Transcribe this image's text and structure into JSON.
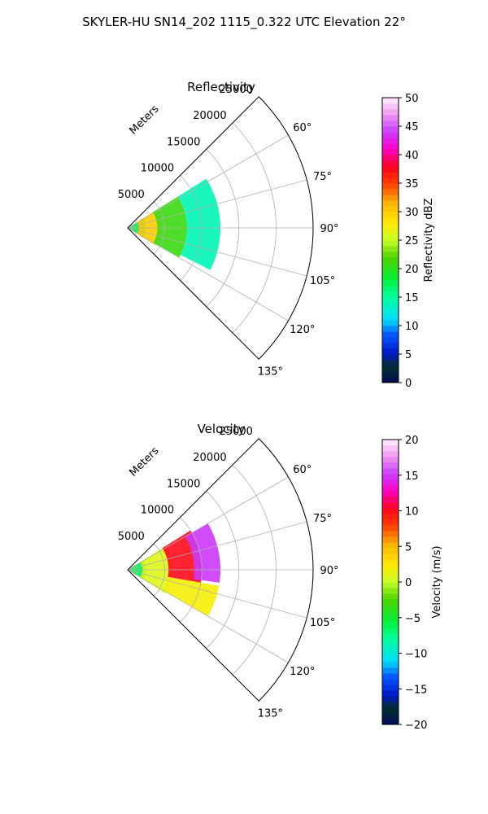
{
  "figure_title": "SKYLER-HU  SN14_202  1115_0.322 UTC Elevation 22°",
  "chart_data": [
    {
      "type": "polar-sector",
      "title": "Reflectivity",
      "range_label": "Meters",
      "range_ticks": [
        5000,
        10000,
        15000,
        20000,
        25000
      ],
      "range_tick_labels": [
        "5000",
        "10000",
        "15000",
        "20000",
        "25000"
      ],
      "rmax": 25000,
      "theta_range_deg": [
        45,
        135
      ],
      "theta_ticks_deg": [
        60,
        75,
        90,
        105,
        120,
        135
      ],
      "theta_tick_labels": [
        "60°",
        "75°",
        "90°",
        "105°",
        "120°",
        "135°"
      ],
      "grid": true,
      "colorbar": {
        "label": "Reflectivity dBZ",
        "vmin": 0,
        "vmax": 50,
        "ticks": [
          0,
          5,
          10,
          15,
          20,
          25,
          30,
          35,
          40,
          45,
          50
        ],
        "tick_labels": [
          "0",
          "5",
          "10",
          "15",
          "20",
          "25",
          "30",
          "35",
          "40",
          "45",
          "50"
        ]
      },
      "data_extent": {
        "r_max": 13500,
        "theta_min": 57,
        "theta_max": 116
      },
      "regions": [
        {
          "r": [
            0,
            2500
          ],
          "theta": [
            60,
            120
          ],
          "value": 18
        },
        {
          "r": [
            1500,
            4500
          ],
          "theta": [
            58,
            122
          ],
          "value": 30
        },
        {
          "r": [
            4000,
            8000
          ],
          "theta": [
            58,
            120
          ],
          "value": 21
        },
        {
          "r": [
            8000,
            12500
          ],
          "theta": [
            58,
            117
          ],
          "value": 14
        }
      ]
    },
    {
      "type": "polar-sector",
      "title": "Velocity",
      "range_label": "Meters",
      "range_ticks": [
        5000,
        10000,
        15000,
        20000,
        25000
      ],
      "range_tick_labels": [
        "5000",
        "10000",
        "15000",
        "20000",
        "25000"
      ],
      "rmax": 25000,
      "theta_range_deg": [
        45,
        135
      ],
      "theta_ticks_deg": [
        60,
        75,
        90,
        105,
        120,
        135
      ],
      "theta_tick_labels": [
        "60°",
        "75°",
        "90°",
        "105°",
        "120°",
        "135°"
      ],
      "grid": true,
      "colorbar": {
        "label": "Velocity (m/s)",
        "vmin": -20,
        "vmax": 20,
        "ticks": [
          -20,
          -15,
          -10,
          -5,
          0,
          5,
          10,
          15,
          20
        ],
        "tick_labels": [
          "−20",
          "−15",
          "−10",
          "−5",
          "0",
          "5",
          "10",
          "15",
          "20"
        ]
      },
      "data_extent": {
        "r_max": 13500,
        "theta_min": 57,
        "theta_max": 116
      },
      "regions": [
        {
          "r": [
            0,
            2500
          ],
          "theta": [
            60,
            120
          ],
          "value": -6
        },
        {
          "r": [
            2000,
            6000
          ],
          "theta": [
            58,
            122
          ],
          "value": 1
        },
        {
          "r": [
            5500,
            10000
          ],
          "theta": [
            58,
            100
          ],
          "value": 10
        },
        {
          "r": [
            9000,
            12500
          ],
          "theta": [
            60,
            98
          ],
          "value": 15
        },
        {
          "r": [
            5500,
            12500
          ],
          "theta": [
            100,
            120
          ],
          "value": 2
        }
      ]
    }
  ]
}
